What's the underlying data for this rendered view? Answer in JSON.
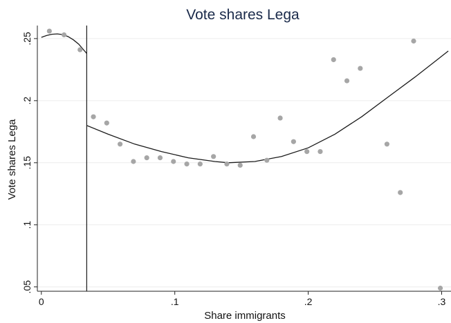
{
  "chart_data": {
    "type": "scatter",
    "title": "Vote shares Lega",
    "xlabel": "Share immigrants",
    "ylabel": "Vote shares Lega",
    "xlim": [
      -0.003,
      0.307
    ],
    "ylim": [
      0.0465,
      0.2605
    ],
    "x_ticks": [
      {
        "value": 0,
        "label": "0"
      },
      {
        "value": 0.1,
        "label": ".1"
      },
      {
        "value": 0.2,
        "label": ".2"
      },
      {
        "value": 0.3,
        "label": ".3"
      }
    ],
    "y_ticks": [
      {
        "value": 0.05,
        "label": ".05"
      },
      {
        "value": 0.1,
        "label": ".1"
      },
      {
        "value": 0.15,
        "label": ".15"
      },
      {
        "value": 0.2,
        "label": ".2"
      },
      {
        "value": 0.25,
        "label": ".25"
      }
    ],
    "grid": true,
    "legend": "none",
    "threshold_x": 0.034,
    "points": [
      {
        "x": 0.006,
        "y": 0.256
      },
      {
        "x": 0.017,
        "y": 0.253
      },
      {
        "x": 0.029,
        "y": 0.241
      },
      {
        "x": 0.039,
        "y": 0.187
      },
      {
        "x": 0.049,
        "y": 0.182
      },
      {
        "x": 0.059,
        "y": 0.165
      },
      {
        "x": 0.069,
        "y": 0.151
      },
      {
        "x": 0.079,
        "y": 0.154
      },
      {
        "x": 0.089,
        "y": 0.154
      },
      {
        "x": 0.099,
        "y": 0.151
      },
      {
        "x": 0.109,
        "y": 0.149
      },
      {
        "x": 0.119,
        "y": 0.149
      },
      {
        "x": 0.129,
        "y": 0.155
      },
      {
        "x": 0.139,
        "y": 0.149
      },
      {
        "x": 0.149,
        "y": 0.148
      },
      {
        "x": 0.159,
        "y": 0.171
      },
      {
        "x": 0.169,
        "y": 0.152
      },
      {
        "x": 0.179,
        "y": 0.186
      },
      {
        "x": 0.189,
        "y": 0.167
      },
      {
        "x": 0.199,
        "y": 0.159
      },
      {
        "x": 0.209,
        "y": 0.159
      },
      {
        "x": 0.219,
        "y": 0.233
      },
      {
        "x": 0.229,
        "y": 0.216
      },
      {
        "x": 0.239,
        "y": 0.226
      },
      {
        "x": 0.259,
        "y": 0.165
      },
      {
        "x": 0.269,
        "y": 0.126
      },
      {
        "x": 0.279,
        "y": 0.248
      },
      {
        "x": 0.299,
        "y": 0.049
      }
    ],
    "fit_left": [
      {
        "x": 0.0,
        "y": 0.251
      },
      {
        "x": 0.004,
        "y": 0.2525
      },
      {
        "x": 0.008,
        "y": 0.2535
      },
      {
        "x": 0.012,
        "y": 0.2538
      },
      {
        "x": 0.016,
        "y": 0.2532
      },
      {
        "x": 0.02,
        "y": 0.2516
      },
      {
        "x": 0.024,
        "y": 0.249
      },
      {
        "x": 0.028,
        "y": 0.2455
      },
      {
        "x": 0.032,
        "y": 0.2405
      },
      {
        "x": 0.034,
        "y": 0.238
      }
    ],
    "fit_right": [
      {
        "x": 0.034,
        "y": 0.18
      },
      {
        "x": 0.05,
        "y": 0.173
      },
      {
        "x": 0.07,
        "y": 0.165
      },
      {
        "x": 0.09,
        "y": 0.159
      },
      {
        "x": 0.11,
        "y": 0.154
      },
      {
        "x": 0.13,
        "y": 0.151
      },
      {
        "x": 0.14,
        "y": 0.15
      },
      {
        "x": 0.16,
        "y": 0.151
      },
      {
        "x": 0.18,
        "y": 0.155
      },
      {
        "x": 0.2,
        "y": 0.162
      },
      {
        "x": 0.22,
        "y": 0.173
      },
      {
        "x": 0.24,
        "y": 0.187
      },
      {
        "x": 0.26,
        "y": 0.203
      },
      {
        "x": 0.28,
        "y": 0.219
      },
      {
        "x": 0.305,
        "y": 0.24
      }
    ],
    "colors": {
      "point": "#a6a6a6",
      "line": "#1a1a1a",
      "grid": "#ececec",
      "axis": "#222222",
      "title": "#1a2a4a"
    }
  }
}
